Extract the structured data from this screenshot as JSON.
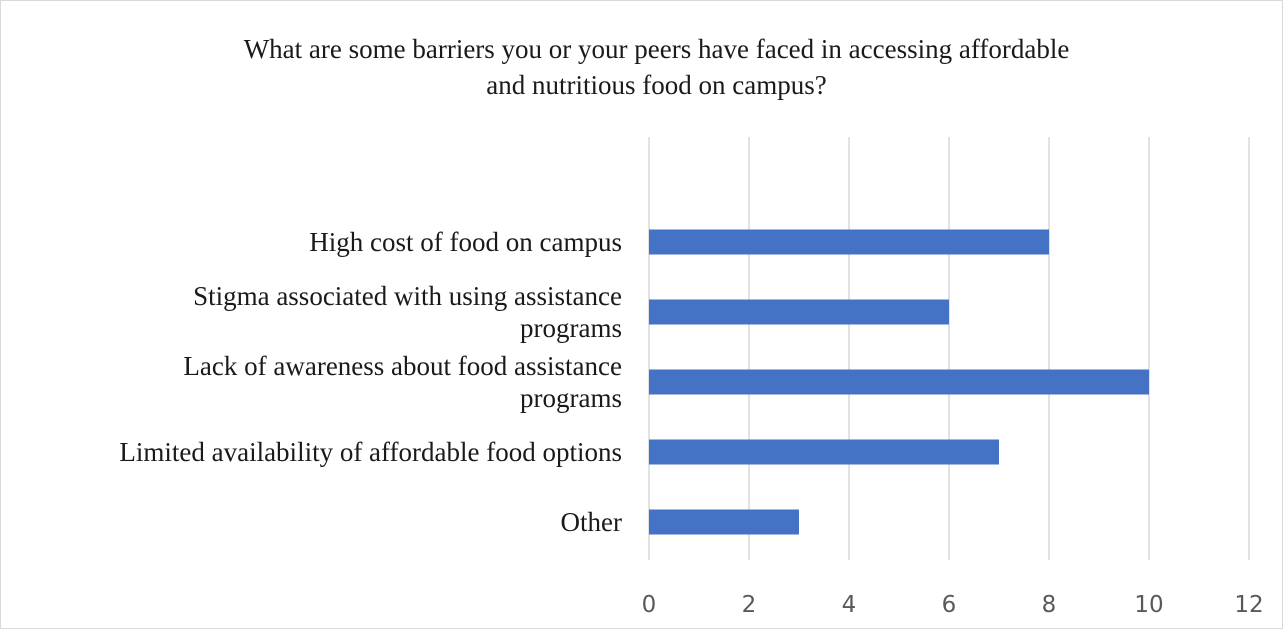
{
  "chart_data": {
    "type": "bar",
    "orientation": "horizontal",
    "title_lines": [
      "What are some barriers you or your peers have faced in accessing affordable",
      "and nutritious food on campus?"
    ],
    "categories": [
      [
        "High cost of food on campus"
      ],
      [
        "Stigma associated with using assistance",
        "programs"
      ],
      [
        "Lack of awareness about food assistance",
        "programs"
      ],
      [
        "Limited availability of affordable food options"
      ],
      [
        "Other"
      ]
    ],
    "values": [
      8,
      6,
      10,
      7,
      3
    ],
    "xlim": [
      0,
      12
    ],
    "xticks": [
      "0",
      "2",
      "4",
      "6",
      "8",
      "10",
      "12"
    ],
    "grid": true,
    "legend": "none",
    "bar_color": "#4472c4",
    "grid_color": "#d9d9d9"
  }
}
